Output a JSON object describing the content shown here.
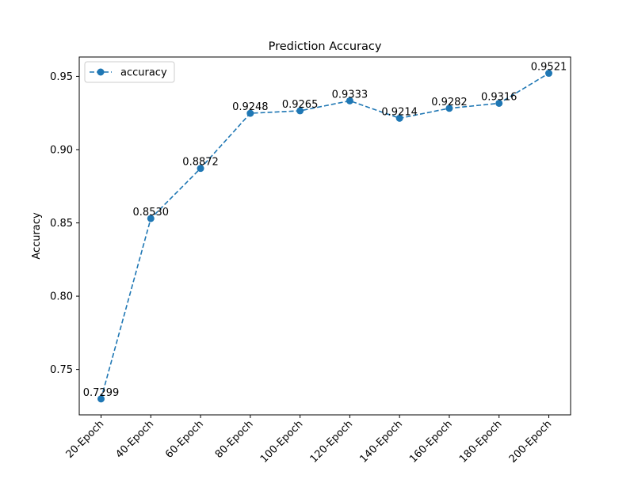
{
  "chart_data": {
    "type": "line",
    "title": "Prediction Accuracy",
    "xlabel": "",
    "ylabel": "Accuracy",
    "categories": [
      "20-Epoch",
      "40-Epoch",
      "60-Epoch",
      "80-Epoch",
      "100-Epoch",
      "120-Epoch",
      "140-Epoch",
      "160-Epoch",
      "180-Epoch",
      "200-Epoch"
    ],
    "series": [
      {
        "name": "accuracy",
        "values": [
          0.7299,
          0.853,
          0.8872,
          0.9248,
          0.9265,
          0.9333,
          0.9214,
          0.9282,
          0.9316,
          0.9521
        ],
        "data_labels": [
          "0.7299",
          "0.8530",
          "0.8872",
          "0.9248",
          "0.9265",
          "0.9333",
          "0.9214",
          "0.9282",
          "0.9316",
          "0.9521"
        ],
        "color": "#1f77b4",
        "line_style": "dashed",
        "marker": "circle"
      }
    ],
    "ylim": [
      0.719,
      0.9632
    ],
    "yticks": [
      0.75,
      0.8,
      0.85,
      0.9,
      0.95
    ],
    "ytick_labels": [
      "0.75",
      "0.80",
      "0.85",
      "0.90",
      "0.95"
    ],
    "grid": false,
    "legend_position": "upper-left"
  }
}
